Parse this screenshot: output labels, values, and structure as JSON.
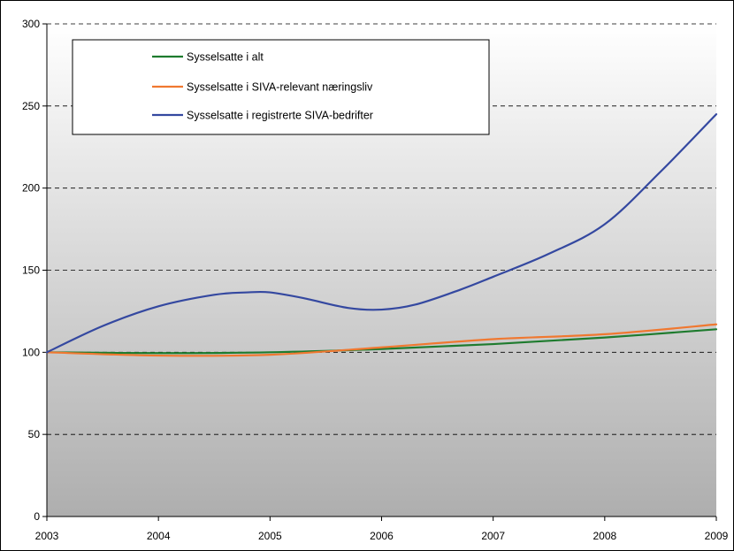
{
  "chart_data": {
    "type": "line",
    "title": "",
    "xlabel": "",
    "ylabel": "",
    "xlim": [
      2003,
      2009
    ],
    "ylim": [
      0,
      300
    ],
    "x_ticks": [
      "2003",
      "2004",
      "2005",
      "2006",
      "2007",
      "2008",
      "2009"
    ],
    "y_ticks": [
      "0",
      "50",
      "100",
      "150",
      "200",
      "250",
      "300"
    ],
    "grid": "horizontal dashed",
    "legend_placement": "top-left",
    "series": [
      {
        "name": "Sysselsatte i alt",
        "color": "#1e7b2e",
        "x": [
          2003,
          2004,
          2005,
          2006,
          2007,
          2008,
          2009
        ],
        "y": [
          100,
          99.5,
          100,
          102,
          105,
          109,
          114
        ]
      },
      {
        "name": "Sysselsatte i SIVA-relevant næringsliv",
        "color": "#f07830",
        "x": [
          2003,
          2004,
          2005,
          2006,
          2007,
          2008,
          2009
        ],
        "y": [
          100,
          98,
          98.5,
          103,
          108,
          111,
          117
        ]
      },
      {
        "name": "Sysselsatte i registrerte SIVA-bedrifter",
        "color": "#3448a0",
        "x": [
          2003,
          2003.5,
          2004,
          2004.5,
          2004.8,
          2005,
          2005.3,
          2005.7,
          2006,
          2006.3,
          2006.7,
          2007,
          2007.5,
          2008,
          2008.5,
          2009
        ],
        "y": [
          100,
          116,
          128,
          135,
          136.5,
          136.5,
          133,
          127,
          126,
          129,
          138,
          146,
          160,
          178,
          210,
          245
        ]
      }
    ]
  }
}
